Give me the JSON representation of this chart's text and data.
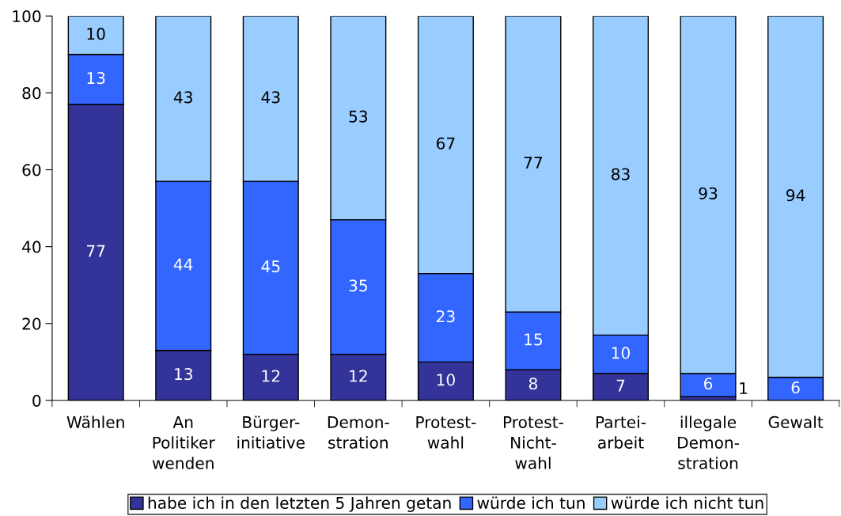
{
  "chart_data": {
    "type": "bar",
    "stacked": true,
    "categories": [
      "Wählen",
      "An\nPolitiker\nwenden",
      "Bürger-\ninitiative",
      "Demon-\nstration",
      "Protest-\nwahl",
      "Protest-\nNicht-\nwahl",
      "Partei-\narbeit",
      "illegale\nDemon-\nstration",
      "Gewalt"
    ],
    "series": [
      {
        "name": "habe ich in den letzten 5 Jahren getan",
        "color": "#333399",
        "values": [
          77,
          13,
          12,
          12,
          10,
          8,
          7,
          1,
          0
        ],
        "value_labels": [
          "77",
          "13",
          "12",
          "12",
          "10",
          "8",
          "7",
          "1",
          null
        ]
      },
      {
        "name": "würde ich tun",
        "color": "#3366ff",
        "values": [
          13,
          44,
          45,
          35,
          23,
          15,
          10,
          6,
          6
        ],
        "value_labels": [
          "13",
          "44",
          "45",
          "35",
          "23",
          "15",
          "10",
          "6",
          "6"
        ]
      },
      {
        "name": "würde ich nicht tun",
        "color": "#99ccff",
        "values": [
          10,
          43,
          43,
          53,
          67,
          77,
          83,
          93,
          94
        ],
        "value_labels": [
          "10",
          "43",
          "43",
          "53",
          "67",
          "77",
          "83",
          "93",
          "94"
        ]
      }
    ],
    "ylim": [
      0,
      100
    ],
    "yticks": [
      0,
      20,
      40,
      60,
      80,
      100
    ],
    "grid": false,
    "legend": "bottom"
  }
}
